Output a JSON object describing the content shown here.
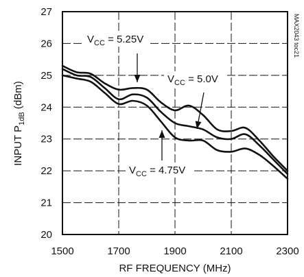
{
  "chart_data": {
    "type": "line",
    "xlabel": "RF FREQUENCY (MHz)",
    "ylabel": {
      "pre": "INPUT P",
      "sub": "1dB",
      "post": " (dBm)"
    },
    "xlim": [
      1500,
      2300
    ],
    "ylim": [
      20,
      27
    ],
    "x_ticks": [
      1500,
      1700,
      1900,
      2100,
      2300
    ],
    "y_ticks": [
      20,
      21,
      22,
      23,
      24,
      25,
      26,
      27
    ],
    "grid": true,
    "side_note": "MAX2043 toc21",
    "series": [
      {
        "name": "VCC = 5.25V",
        "x": [
          1500,
          1550,
          1600,
          1650,
          1700,
          1750,
          1800,
          1850,
          1900,
          1950,
          2000,
          2050,
          2100,
          2150,
          2200,
          2250,
          2300
        ],
        "y": [
          25.3,
          25.1,
          25.05,
          24.75,
          24.55,
          24.6,
          24.55,
          24.15,
          23.9,
          24.05,
          23.75,
          23.3,
          23.25,
          23.35,
          22.95,
          22.45,
          22.0
        ]
      },
      {
        "name": "VCC = 5.0V",
        "x": [
          1500,
          1550,
          1600,
          1650,
          1700,
          1750,
          1800,
          1850,
          1900,
          1950,
          2000,
          2050,
          2100,
          2150,
          2200,
          2250,
          2300
        ],
        "y": [
          25.2,
          25.0,
          24.95,
          24.6,
          24.25,
          24.4,
          24.3,
          23.85,
          23.5,
          23.4,
          23.3,
          23.05,
          23.0,
          23.15,
          22.8,
          22.35,
          21.9
        ]
      },
      {
        "name": "VCC = 4.75V",
        "x": [
          1500,
          1550,
          1600,
          1650,
          1700,
          1750,
          1800,
          1850,
          1900,
          1950,
          2000,
          2050,
          2100,
          2150,
          2200,
          2250,
          2300
        ],
        "y": [
          25.0,
          24.9,
          24.8,
          24.45,
          24.1,
          24.2,
          24.05,
          23.55,
          23.05,
          22.95,
          22.95,
          22.65,
          22.6,
          22.7,
          22.5,
          22.15,
          21.75
        ]
      }
    ],
    "annotations": [
      {
        "pre": "V",
        "sub": "CC",
        "post": " = 5.25V",
        "series": 0
      },
      {
        "pre": "V",
        "sub": "CC",
        "post": " = 5.0V",
        "series": 1
      },
      {
        "pre": "V",
        "sub": "CC",
        "post": " = 4.75V",
        "series": 2
      }
    ]
  }
}
